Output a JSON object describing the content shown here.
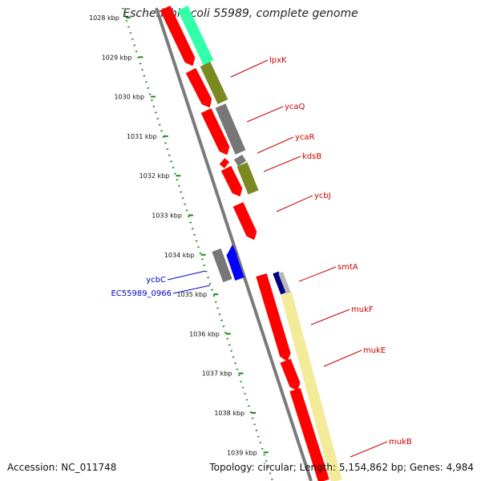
{
  "title": "Escherichia coli 55989, complete genome",
  "footer": {
    "accession": "Accession: NC_011748",
    "summary": "Topology: circular; Length: 5,154,862 bp; Genes: 4,984"
  },
  "axis": {
    "ticks": [
      "1028 kbp",
      "1029 kbp",
      "1030 kbp",
      "1031 kbp",
      "1032 kbp",
      "1033 kbp",
      "1034 kbp",
      "1035 kbp",
      "1036 kbp",
      "1037 kbp",
      "1038 kbp",
      "1039 kbp"
    ]
  },
  "gene_labels": [
    {
      "name": "lpxK",
      "color": "#cc0000",
      "side": "right"
    },
    {
      "name": "ycaQ",
      "color": "#cc0000",
      "side": "right"
    },
    {
      "name": "ycaR",
      "color": "#cc0000",
      "side": "right"
    },
    {
      "name": "kdsB",
      "color": "#cc0000",
      "side": "right"
    },
    {
      "name": "ycbJ",
      "color": "#cc0000",
      "side": "right"
    },
    {
      "name": "smtA",
      "color": "#cc0000",
      "side": "right"
    },
    {
      "name": "mukF",
      "color": "#cc0000",
      "side": "right"
    },
    {
      "name": "mukE",
      "color": "#cc0000",
      "side": "right"
    },
    {
      "name": "mukB",
      "color": "#cc0000",
      "side": "right"
    },
    {
      "name": "ycbC",
      "color": "#0000cc",
      "side": "left"
    },
    {
      "name": "EC55989_0966",
      "color": "#0000cc",
      "side": "left"
    }
  ],
  "colors": {
    "backbone": "#7a7a7a",
    "tick_dots": "#1a8a1a",
    "cds_forward": "#ff0000",
    "cds_blue": "#0000ff",
    "gray_feature": "#777777",
    "olive_feature": "#7a8a20",
    "teal_feature": "#33ffaa",
    "pale_feature": "#f3ea9a"
  }
}
